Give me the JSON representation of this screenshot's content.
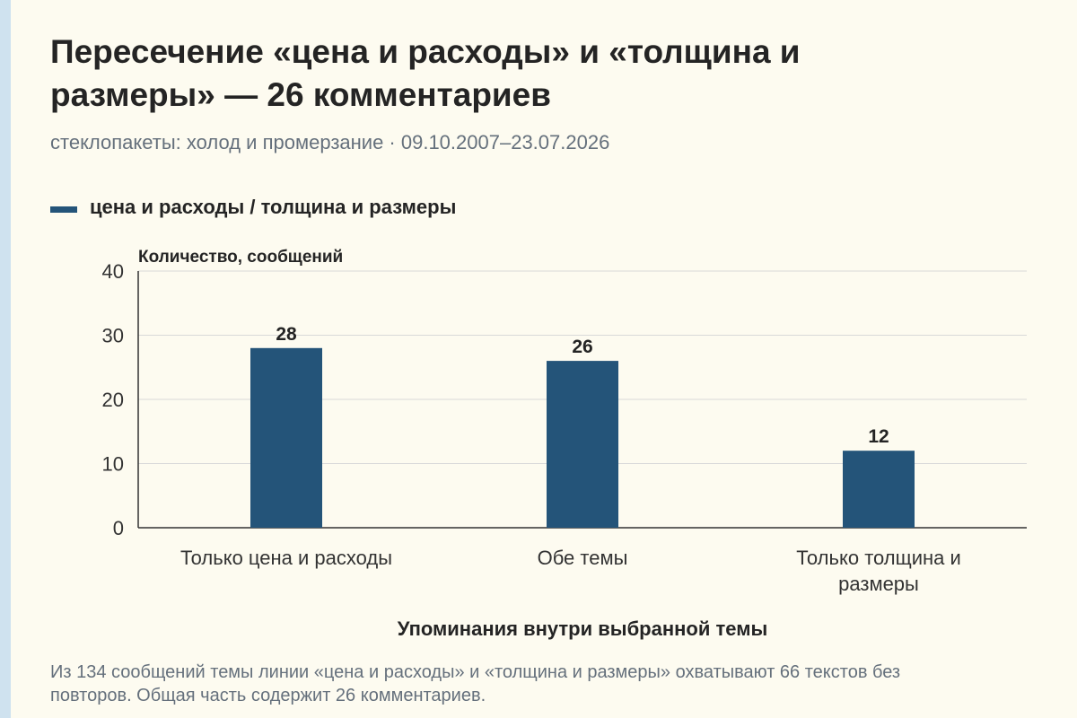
{
  "title": "Пересечение «цена и расходы» и «толщина и размеры» — 26 комментариев",
  "subtitle": "стеклопакеты: холод и промерзание · 09.10.2007–23.07.2026",
  "legend_label": "цена и расходы / толщина и размеры",
  "footnote": "Из 134 сообщений темы линии «цена и расходы» и «толщина и размеры» охватывают 66 текстов без повторов. Общая часть содержит 26 комментариев.",
  "colors": {
    "bar": "#245479",
    "background": "#fdfbf0",
    "grid": "#d9d9d9"
  },
  "chart_data": {
    "type": "bar",
    "title": "Пересечение «цена и расходы» и «толщина и размеры» — 26 комментариев",
    "ylabel": "Количество, сообщений",
    "xlabel": "Упоминания внутри выбранной темы",
    "ylim": [
      0,
      40
    ],
    "yticks": [
      0,
      10,
      20,
      30,
      40
    ],
    "grid": true,
    "legend_position": "top-left",
    "categories": [
      [
        "Только цена и расходы"
      ],
      [
        "Обе темы"
      ],
      [
        "Только толщина и",
        "размеры"
      ]
    ],
    "series": [
      {
        "name": "цена и расходы / толщина и размеры",
        "values": [
          28,
          26,
          12
        ]
      }
    ]
  }
}
